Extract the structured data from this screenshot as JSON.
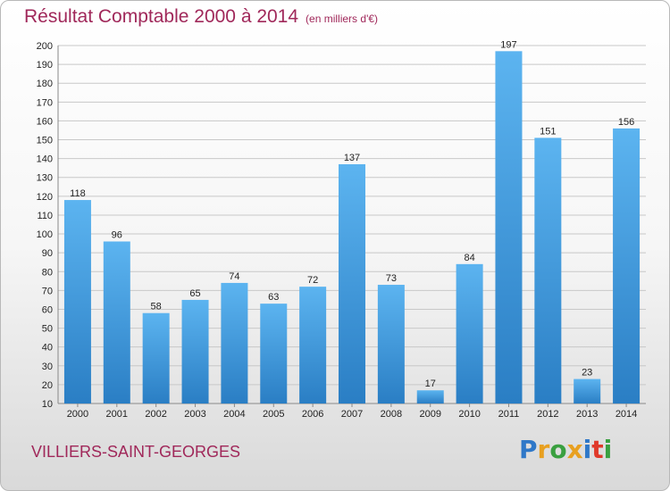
{
  "header": {
    "title": "Résultat Comptable 2000 à 2014",
    "subtitle": "(en milliers d'€)"
  },
  "footer": {
    "commune": "VILLIERS-SAINT-GEORGES",
    "logo": "Proxiti"
  },
  "colors": {
    "title": "#a0285a",
    "bar_light": "#5cb4f0",
    "bar_dark": "#2a7ec4",
    "grid": "#c8c8c8",
    "logo": [
      "#2f78c8",
      "#e8a020",
      "#3aa040",
      "#e8a020",
      "#2f78c8",
      "#e03a2a",
      "#3aa040"
    ]
  },
  "chart_data": {
    "type": "bar",
    "title": "Résultat Comptable 2000 à 2014",
    "subtitle": "(en milliers d'€)",
    "categories": [
      "2000",
      "2001",
      "2002",
      "2003",
      "2004",
      "2005",
      "2006",
      "2007",
      "2008",
      "2009",
      "2010",
      "2011",
      "2012",
      "2013",
      "2014"
    ],
    "values": [
      118,
      96,
      58,
      65,
      74,
      63,
      72,
      137,
      73,
      17,
      84,
      197,
      151,
      23,
      156
    ],
    "ylim": [
      10,
      200
    ],
    "yticks": [
      10,
      20,
      30,
      40,
      50,
      60,
      70,
      80,
      90,
      100,
      110,
      120,
      130,
      140,
      150,
      160,
      170,
      180,
      190,
      200
    ],
    "grid": true,
    "xlabel": "",
    "ylabel": ""
  }
}
